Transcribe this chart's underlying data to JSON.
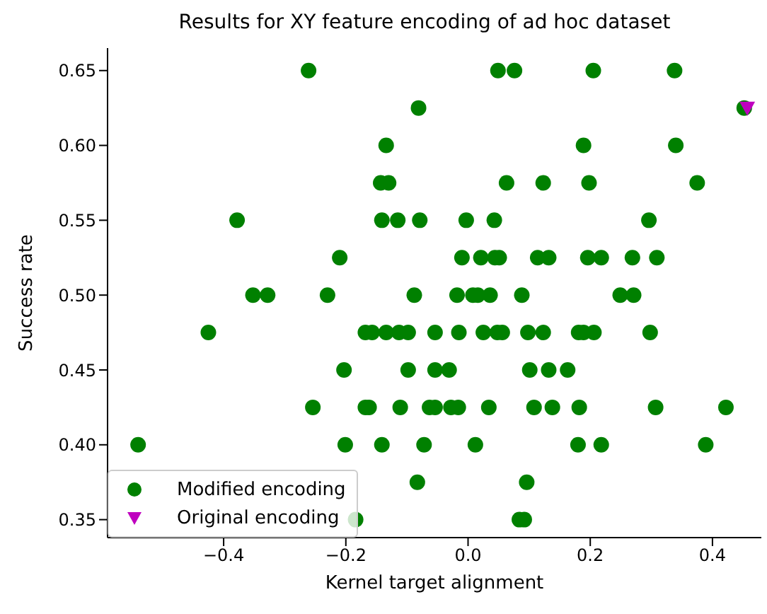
{
  "chart_data": {
    "type": "scatter",
    "title": "Results for XY feature encoding of ad hoc dataset",
    "xlabel": "Kernel target alignment",
    "ylabel": "Success rate",
    "xlim": [
      -0.59,
      0.48
    ],
    "ylim": [
      0.338,
      0.665
    ],
    "xticks": [
      {
        "value": -0.4,
        "label": "−0.4"
      },
      {
        "value": -0.2,
        "label": "−0.2"
      },
      {
        "value": 0,
        "label": "0.0"
      },
      {
        "value": 0.2,
        "label": "0.2"
      },
      {
        "value": 0.4,
        "label": "0.4"
      }
    ],
    "yticks": [
      0.35,
      {
        "value": 0.4,
        "label": "0.40"
      },
      0.45,
      {
        "value": 0.5,
        "label": "0.50"
      },
      0.55,
      {
        "value": 0.6,
        "label": "0.60"
      },
      0.65
    ],
    "grid": false,
    "legend": "bottom left",
    "series": [
      {
        "name": "Modified encoding",
        "color": "#008000",
        "marker": "circle",
        "x": [
          -0.261,
          0.049,
          0.076,
          0.205,
          0.338,
          -0.081,
          0.452,
          -0.134,
          0.189,
          0.34,
          -0.143,
          -0.13,
          0.063,
          0.123,
          0.198,
          0.375,
          -0.378,
          -0.141,
          -0.115,
          -0.079,
          -0.003,
          0.043,
          0.296,
          -0.21,
          -0.01,
          0.021,
          0.044,
          0.051,
          0.114,
          0.132,
          0.196,
          0.218,
          0.269,
          0.309,
          -0.352,
          -0.328,
          -0.23,
          -0.088,
          -0.018,
          0.008,
          0.016,
          0.036,
          0.088,
          0.249,
          0.271,
          -0.425,
          -0.168,
          -0.157,
          -0.134,
          -0.113,
          -0.098,
          -0.054,
          -0.015,
          0.025,
          0.048,
          0.056,
          0.098,
          0.123,
          0.181,
          0.189,
          0.206,
          0.298,
          -0.203,
          -0.098,
          -0.054,
          -0.031,
          0.101,
          0.132,
          0.163,
          -0.254,
          -0.168,
          -0.162,
          -0.111,
          -0.063,
          -0.054,
          -0.028,
          -0.016,
          0.034,
          0.108,
          0.138,
          0.182,
          0.307,
          0.422,
          -0.54,
          -0.201,
          -0.141,
          -0.072,
          0.012,
          0.18,
          0.218,
          0.389,
          -0.083,
          0.096,
          -0.184,
          0.084,
          0.092
        ],
        "values": [
          0.65,
          0.65,
          0.65,
          0.65,
          0.65,
          0.625,
          0.625,
          0.6,
          0.6,
          0.6,
          0.575,
          0.575,
          0.575,
          0.575,
          0.575,
          0.575,
          0.55,
          0.55,
          0.55,
          0.55,
          0.55,
          0.55,
          0.55,
          0.525,
          0.525,
          0.525,
          0.525,
          0.525,
          0.525,
          0.525,
          0.525,
          0.525,
          0.525,
          0.525,
          0.5,
          0.5,
          0.5,
          0.5,
          0.5,
          0.5,
          0.5,
          0.5,
          0.5,
          0.5,
          0.5,
          0.475,
          0.475,
          0.475,
          0.475,
          0.475,
          0.475,
          0.475,
          0.475,
          0.475,
          0.475,
          0.475,
          0.475,
          0.475,
          0.475,
          0.475,
          0.475,
          0.475,
          0.45,
          0.45,
          0.45,
          0.45,
          0.45,
          0.45,
          0.45,
          0.425,
          0.425,
          0.425,
          0.425,
          0.425,
          0.425,
          0.425,
          0.425,
          0.425,
          0.425,
          0.425,
          0.425,
          0.425,
          0.425,
          0.4,
          0.4,
          0.4,
          0.4,
          0.4,
          0.4,
          0.4,
          0.4,
          0.375,
          0.375,
          0.35,
          0.35,
          0.35
        ]
      },
      {
        "name": "Original encoding",
        "color": "#bf00bf",
        "marker": "triangle",
        "x": [
          0.457
        ],
        "values": [
          0.625
        ]
      }
    ]
  }
}
